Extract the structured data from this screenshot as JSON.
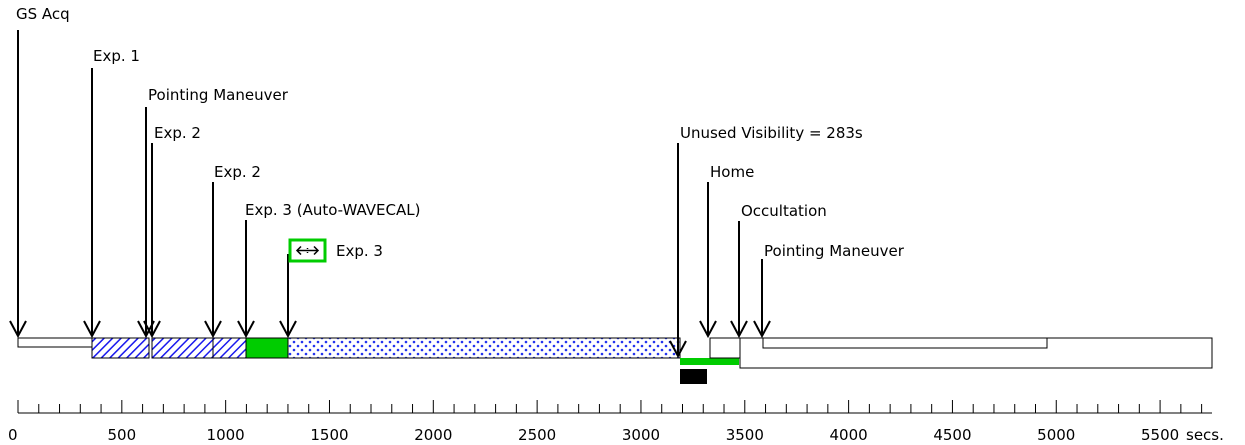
{
  "labels": {
    "gs_acq": "GS Acq",
    "exp1": "Exp. 1",
    "pointing1": "Pointing Maneuver",
    "exp2a": "Exp. 2",
    "exp2b": "Exp. 2",
    "exp3_autowavecal": "Exp. 3 (Auto-WAVECAL)",
    "exp3": "Exp. 3",
    "unused_visibility": "Unused Visibility = 283s",
    "home": "Home",
    "occultation": "Occultation",
    "pointing2": "Pointing Maneuver"
  },
  "axis": {
    "unit": "secs.",
    "min": 0,
    "max": 5750,
    "ticks": [
      "0",
      "500",
      "1000",
      "1500",
      "2000",
      "2500",
      "3000",
      "3500",
      "4000",
      "4500",
      "5000",
      "5500"
    ],
    "minor_step": 100,
    "major_step": 500
  },
  "events_seconds": {
    "gs_acq": 0,
    "exp1": 360,
    "pointing1": 635,
    "exp2a": 660,
    "exp2b": 950,
    "exp3_autowavecal": 1110,
    "exp3": 1310,
    "unused_visibility": 3210,
    "home": 3345,
    "occultation": 3490,
    "pointing2": 3605
  },
  "segments_seconds": {
    "gs_acq": [
      0,
      360
    ],
    "exp1": [
      360,
      635
    ],
    "exp2a": [
      660,
      950
    ],
    "exp2b": [
      950,
      1110
    ],
    "exp3_autowavecal": [
      1110,
      1310
    ],
    "exp3": [
      1310,
      3210
    ],
    "green_bar": [
      3210,
      3490
    ],
    "black_block": [
      3210,
      3345
    ],
    "home": [
      3345,
      3605
    ],
    "tail_upper": [
      3605,
      4990
    ],
    "tail_lower": [
      3490,
      5750
    ]
  },
  "colors": {
    "hatch": "#1a1aee",
    "green": "#00cc00",
    "dots": "#2233ee",
    "black": "#000000"
  },
  "icons": {
    "exp3": "double-arrow-icon"
  }
}
